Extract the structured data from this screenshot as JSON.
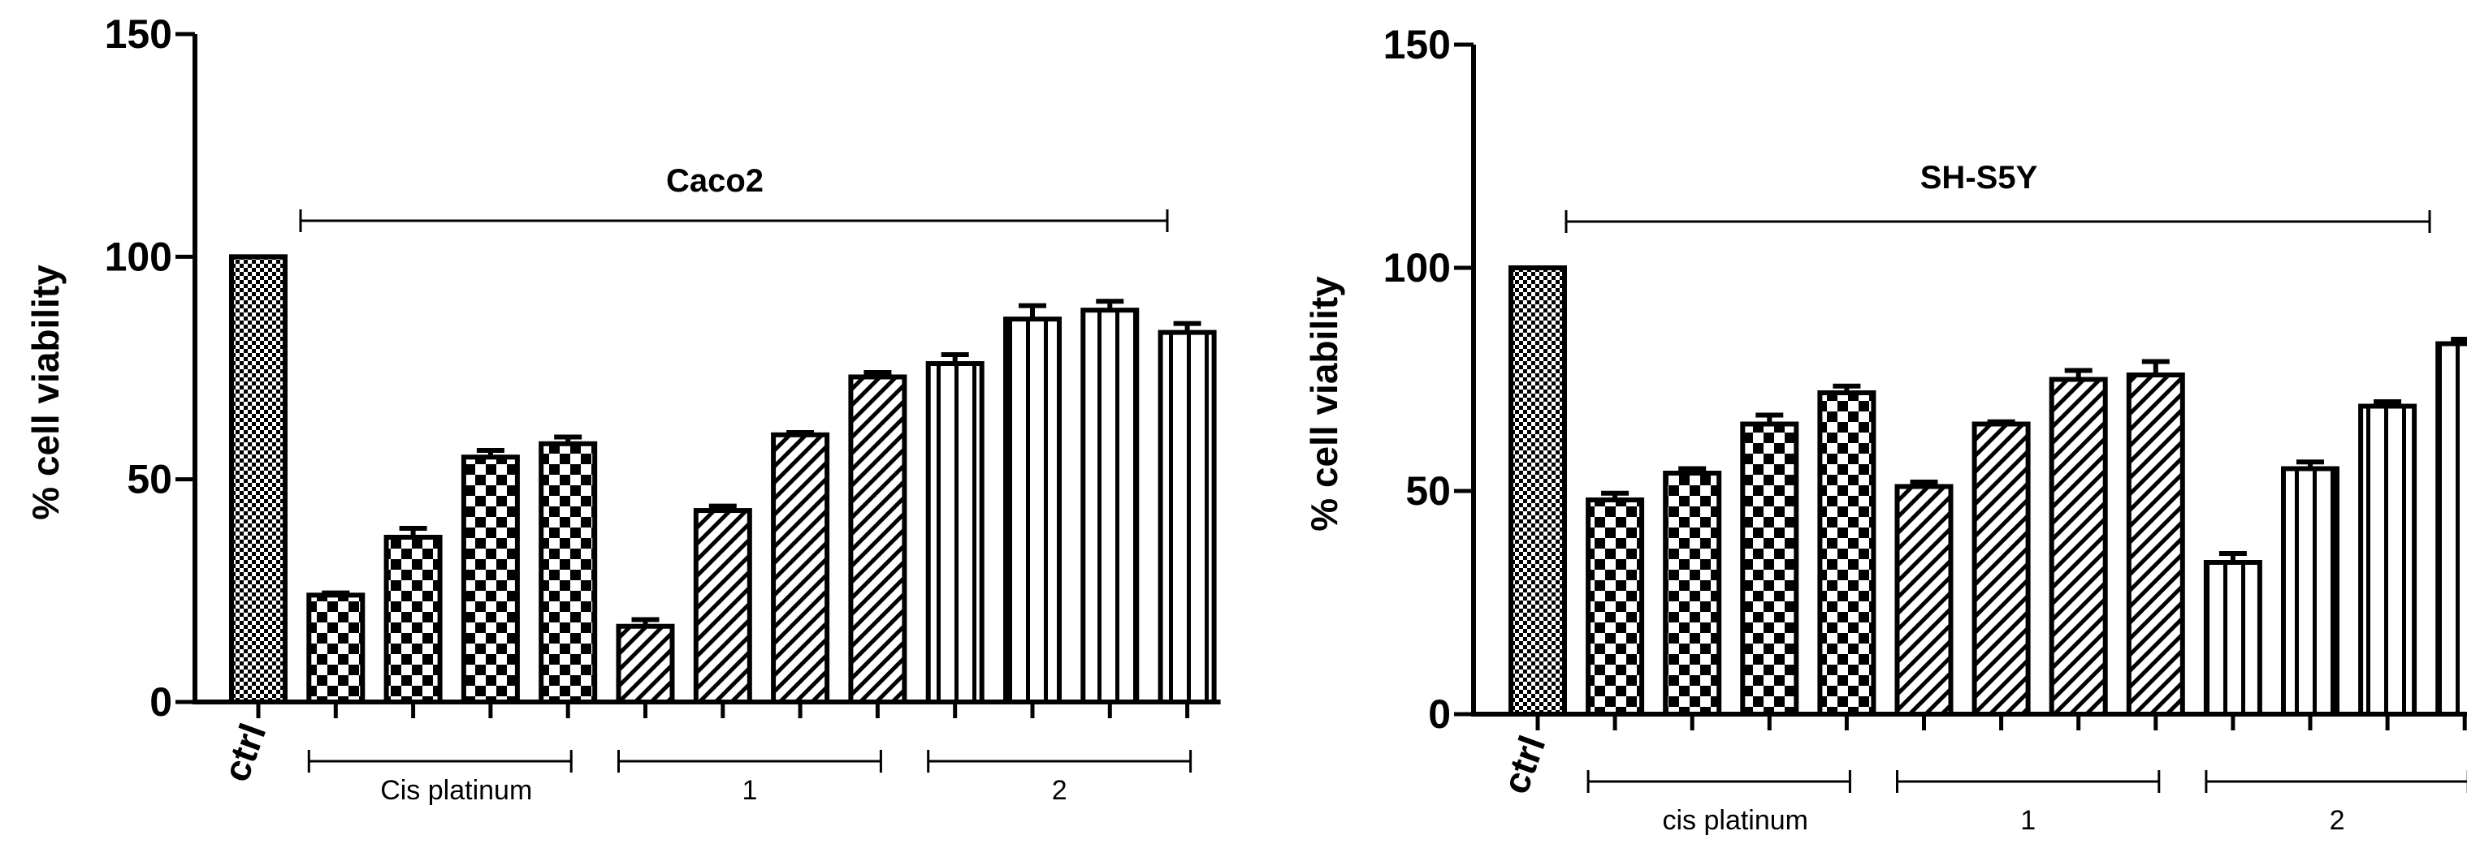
{
  "chart_data": [
    {
      "type": "bar",
      "title": "Caco2",
      "ylabel": "% cell viability",
      "ylim": [
        0,
        150
      ],
      "yticks": [
        0,
        50,
        100,
        150
      ],
      "categories": [
        "ctrl",
        "",
        "",
        "",
        "",
        "",
        "",
        "",
        "",
        "",
        "",
        "",
        ""
      ],
      "values": [
        100,
        24,
        37,
        55,
        58,
        17,
        43,
        60,
        73,
        76,
        86,
        88,
        83
      ],
      "errors": [
        0,
        0.5,
        2,
        1.5,
        1.5,
        1.5,
        1,
        0.5,
        1,
        2,
        3,
        2,
        2
      ],
      "patterns": [
        "dense",
        "check",
        "check",
        "check",
        "check",
        "hatch",
        "hatch",
        "hatch",
        "hatch",
        "stripe",
        "stripe",
        "stripe",
        "stripe"
      ],
      "groups": [
        {
          "label": "Cis platinum",
          "bars": [
            1,
            4
          ]
        },
        {
          "label": "1",
          "bars": [
            5,
            8
          ]
        },
        {
          "label": "2",
          "bars": [
            9,
            12
          ]
        }
      ]
    },
    {
      "type": "bar",
      "title": "SH-S5Y",
      "ylabel": "% cell viability",
      "ylim": [
        0,
        150
      ],
      "yticks": [
        0,
        50,
        100,
        150
      ],
      "categories": [
        "ctrl",
        "",
        "",
        "",
        "",
        "",
        "",
        "",
        "",
        "",
        "",
        "",
        ""
      ],
      "values": [
        100,
        48,
        54,
        65,
        72,
        51,
        65,
        75,
        76,
        34,
        55,
        69,
        83
      ],
      "errors": [
        0,
        1.5,
        1,
        2,
        1.5,
        1,
        0.5,
        2,
        3,
        2,
        1.5,
        1,
        1
      ],
      "patterns": [
        "dense",
        "check",
        "check",
        "check",
        "check",
        "hatch",
        "hatch",
        "hatch",
        "hatch",
        "stripe",
        "stripe",
        "stripe",
        "stripe"
      ],
      "groups": [
        {
          "label": "cis platinum",
          "bars": [
            1,
            4
          ]
        },
        {
          "label": "1",
          "bars": [
            5,
            8
          ]
        },
        {
          "label": "2",
          "bars": [
            9,
            12
          ]
        }
      ]
    }
  ]
}
